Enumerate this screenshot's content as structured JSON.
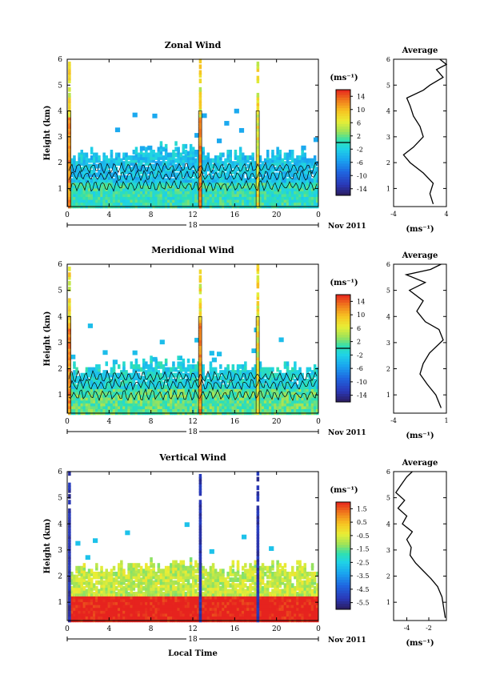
{
  "chart_data": [
    {
      "type": "heatmap",
      "title": "Zonal Wind",
      "ylabel": "Height (km)",
      "y_ticks": [
        "1",
        "2",
        "3",
        "4",
        "5",
        "6"
      ],
      "ylim": [
        0.3,
        6
      ],
      "x_ticks": [
        "0",
        "4",
        "8",
        "12",
        "16",
        "20",
        "0"
      ],
      "x_date_label": "18",
      "x_month_label": "Nov 2011",
      "colorbar": {
        "unit": "(ms⁻¹)",
        "ticks": [
          "14",
          "10",
          "6",
          "2",
          "-2",
          "-6",
          "-10",
          "-14"
        ],
        "range": [
          -16,
          16
        ],
        "zero_line_at": 0
      },
      "pattern": {
        "noise_band_top_km": [
          1.1,
          1.5,
          1.8
        ],
        "fill_layer_top_km": 2.3,
        "rain_spikes_local_time": [
          0.2,
          12.7,
          18.2
        ],
        "dominant_value": -3
      },
      "average_profile": {
        "title": "Average",
        "xlabel": "(ms⁻¹)",
        "x_ticks": [
          "-4",
          "4"
        ],
        "xlim": [
          -4,
          4
        ],
        "y_ticks": [
          "1",
          "2",
          "3",
          "4",
          "5",
          "6"
        ],
        "ylim": [
          0.3,
          6
        ],
        "points": [
          [
            2.0,
            0.4
          ],
          [
            1.5,
            0.8
          ],
          [
            2.0,
            1.2
          ],
          [
            0.5,
            1.6
          ],
          [
            -1.5,
            2.0
          ],
          [
            -2.5,
            2.3
          ],
          [
            -1.0,
            2.6
          ],
          [
            0.5,
            3.0
          ],
          [
            0.0,
            3.4
          ],
          [
            -1.0,
            3.8
          ],
          [
            -1.5,
            4.2
          ],
          [
            -2.0,
            4.5
          ],
          [
            0.5,
            4.8
          ],
          [
            1.5,
            5.0
          ],
          [
            3.5,
            5.3
          ],
          [
            2.5,
            5.6
          ],
          [
            4.0,
            5.8
          ],
          [
            3.0,
            6.0
          ]
        ]
      }
    },
    {
      "type": "heatmap",
      "title": "Meridional Wind",
      "ylabel": "Height (km)",
      "y_ticks": [
        "1",
        "2",
        "3",
        "4",
        "5",
        "6"
      ],
      "ylim": [
        0.3,
        6
      ],
      "x_ticks": [
        "0",
        "4",
        "8",
        "12",
        "16",
        "20",
        "0"
      ],
      "x_date_label": "18",
      "x_month_label": "Nov 2011",
      "colorbar": {
        "unit": "(ms⁻¹)",
        "ticks": [
          "14",
          "10",
          "6",
          "2",
          "-2",
          "-6",
          "-10",
          "-14"
        ],
        "range": [
          -16,
          16
        ],
        "zero_line_at": 0
      },
      "pattern": {
        "noise_band_top_km": [
          1.0,
          1.4,
          1.7
        ],
        "fill_layer_top_km": 2.0,
        "rain_spikes_local_time": [
          0.2,
          12.7,
          18.2
        ],
        "dominant_value": -1.5
      },
      "average_profile": {
        "title": "Average",
        "xlabel": "(ms⁻¹)",
        "x_ticks": [
          "-4",
          "1"
        ],
        "xlim": [
          -4,
          1
        ],
        "y_ticks": [
          "1",
          "2",
          "3",
          "4",
          "5",
          "6"
        ],
        "ylim": [
          0.3,
          6
        ],
        "points": [
          [
            0.5,
            0.5
          ],
          [
            0.0,
            1.0
          ],
          [
            -0.8,
            1.4
          ],
          [
            -1.5,
            1.8
          ],
          [
            -1.2,
            2.2
          ],
          [
            -0.6,
            2.6
          ],
          [
            0.7,
            3.1
          ],
          [
            0.3,
            3.5
          ],
          [
            -1.0,
            3.8
          ],
          [
            -1.8,
            4.2
          ],
          [
            -1.2,
            4.6
          ],
          [
            -2.5,
            5.0
          ],
          [
            -1.0,
            5.3
          ],
          [
            -2.8,
            5.6
          ],
          [
            -0.5,
            5.8
          ],
          [
            0.5,
            6.0
          ]
        ]
      }
    },
    {
      "type": "heatmap",
      "title": "Vertical Wind",
      "ylabel": "Height (km)",
      "y_ticks": [
        "1",
        "2",
        "3",
        "4",
        "5",
        "6"
      ],
      "ylim": [
        0.3,
        6
      ],
      "x_ticks": [
        "0",
        "4",
        "8",
        "12",
        "16",
        "20",
        "0"
      ],
      "x_date_label": "18",
      "x_month_label": "Nov 2011",
      "xlabel": "Local Time",
      "colorbar": {
        "unit": "(ms⁻¹)",
        "ticks": [
          "1.5",
          "0.5",
          "-0.5",
          "-1.5",
          "-2.5",
          "-3.5",
          "-4.5",
          "-5.5"
        ],
        "range": [
          -6,
          2
        ]
      },
      "pattern": {
        "fill_layer_top_km": 2.3,
        "rain_spikes_local_time": [
          0.2,
          12.7,
          18.2
        ],
        "dominant_value": -0.8
      },
      "average_profile": {
        "title": "Average",
        "xlabel": "(ms⁻¹)",
        "x_ticks": [
          "-4",
          "-2"
        ],
        "xlim": [
          -5.2,
          -0.4
        ],
        "y_ticks": [
          "1",
          "2",
          "3",
          "4",
          "5",
          "6"
        ],
        "ylim": [
          0.3,
          6
        ],
        "points": [
          [
            -0.5,
            0.4
          ],
          [
            -0.8,
            1.2
          ],
          [
            -1.2,
            1.6
          ],
          [
            -1.8,
            1.9
          ],
          [
            -2.5,
            2.2
          ],
          [
            -3.2,
            2.5
          ],
          [
            -3.7,
            2.8
          ],
          [
            -3.6,
            3.1
          ],
          [
            -4.0,
            3.4
          ],
          [
            -3.5,
            3.7
          ],
          [
            -4.4,
            4.0
          ],
          [
            -4.0,
            4.3
          ],
          [
            -4.8,
            4.6
          ],
          [
            -4.2,
            4.9
          ],
          [
            -5.0,
            5.2
          ],
          [
            -4.5,
            5.5
          ],
          [
            -4.0,
            5.8
          ],
          [
            -3.5,
            6.0
          ]
        ]
      }
    }
  ]
}
